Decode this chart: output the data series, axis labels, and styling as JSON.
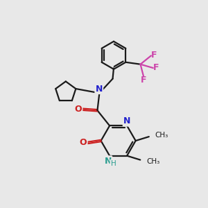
{
  "bg_color": "#e8e8e8",
  "bond_color": "#1a1a1a",
  "N_color": "#2222cc",
  "O_color": "#cc2020",
  "F_color": "#cc44aa",
  "NH_color": "#2a9d8f",
  "figsize": [
    3.0,
    3.0
  ],
  "dpi": 100,
  "xlim": [
    0,
    10
  ],
  "ylim": [
    0,
    10
  ]
}
